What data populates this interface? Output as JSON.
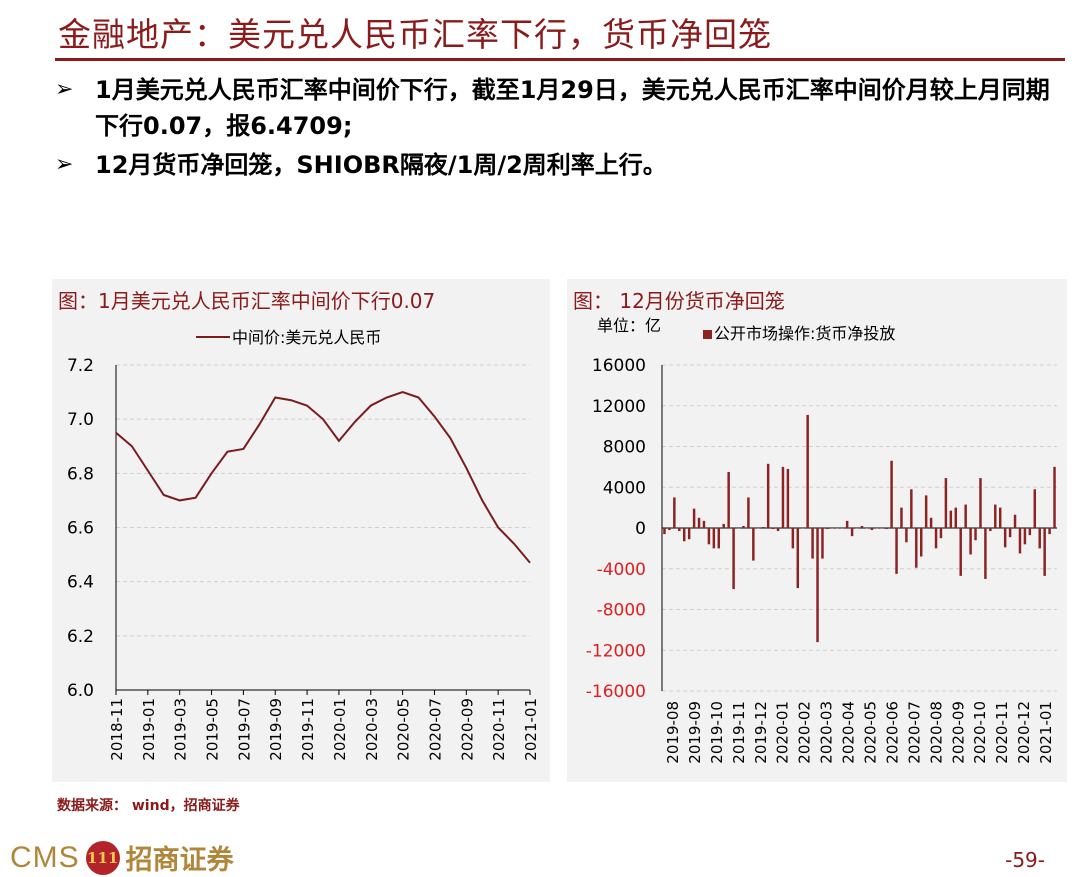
{
  "header": {
    "title": "金融地产：美元兑人民币汇率下行，货币净回笼"
  },
  "bullets": [
    "1月美元兑人民币汇率中间价下行，截至1月29日，美元兑人民币汇率中间价月较上月同期下行0.07，报6.4709;",
    "12月货币净回笼，SHIOBR隔夜/1周/2周利率上行。"
  ],
  "bullet_marker": "➢",
  "colors": {
    "accent": "#8b1a1a",
    "line": "#7a1c1c",
    "bar": "#8b2323",
    "negative_label": "#e02020"
  },
  "chart_data": [
    {
      "type": "line",
      "title": "图：1月美元兑人民币汇率中间价下行0.07",
      "series": [
        {
          "name": "中间价:美元兑人民币",
          "x": [
            "2018-11",
            "2018-12",
            "2019-01",
            "2019-02",
            "2019-03",
            "2019-04",
            "2019-05",
            "2019-06",
            "2019-07",
            "2019-08",
            "2019-09",
            "2019-10",
            "2019-11",
            "2019-12",
            "2020-01",
            "2020-02",
            "2020-03",
            "2020-04",
            "2020-05",
            "2020-06",
            "2020-07",
            "2020-08",
            "2020-09",
            "2020-10",
            "2020-11",
            "2020-12",
            "2021-01"
          ],
          "values": [
            6.95,
            6.9,
            6.81,
            6.72,
            6.7,
            6.71,
            6.8,
            6.88,
            6.89,
            6.98,
            7.08,
            7.07,
            7.05,
            7.0,
            6.92,
            6.99,
            7.05,
            7.08,
            7.1,
            7.08,
            7.01,
            6.93,
            6.82,
            6.7,
            6.6,
            6.54,
            6.47
          ]
        }
      ],
      "xticks": [
        "2018-11",
        "2019-01",
        "2019-03",
        "2019-05",
        "2019-07",
        "2019-09",
        "2019-11",
        "2020-01",
        "2020-03",
        "2020-05",
        "2020-07",
        "2020-09",
        "2020-11",
        "2021-01"
      ],
      "yticks": [
        "6.0",
        "6.2",
        "6.4",
        "6.6",
        "6.8",
        "7.0",
        "7.2"
      ],
      "ylim": [
        6.0,
        7.2
      ],
      "legend": "top-center",
      "grid": true
    },
    {
      "type": "bar",
      "title": "图： 12月份货币净回笼",
      "unit_label": "单位：亿",
      "series": [
        {
          "name": "公开市场操作:货币净投放",
          "values": [
            -600,
            -200,
            3000,
            -300,
            -1300,
            -1100,
            1900,
            1000,
            700,
            -1600,
            -2000,
            -2000,
            400,
            5500,
            -6000,
            0,
            200,
            3000,
            -3200,
            0,
            100,
            6300,
            -100,
            -300,
            6000,
            5800,
            -2000,
            -5900,
            0,
            11100,
            -3000,
            -11200,
            -3000,
            -100,
            0,
            0,
            0,
            700,
            -800,
            0,
            200,
            0,
            -200,
            0,
            0,
            -100,
            6600,
            -4500,
            2000,
            -1400,
            3800,
            -3900,
            -2800,
            3200,
            1000,
            -2000,
            -1000,
            4900,
            1700,
            2000,
            -4700,
            2300,
            -2600,
            -1200,
            4900,
            -5000,
            -300,
            2300,
            2000,
            -1900,
            -900,
            1300,
            -2500,
            -1600,
            -700,
            3800,
            -2000,
            -4700,
            -600,
            6000
          ]
        }
      ],
      "xticks": [
        "2019-08",
        "2019-09",
        "2019-10",
        "2019-11",
        "2019-12",
        "2020-01",
        "2020-02",
        "2020-03",
        "2020-04",
        "2020-05",
        "2020-06",
        "2020-07",
        "2020-08",
        "2020-09",
        "2020-10",
        "2020-11",
        "2020-12",
        "2021-01"
      ],
      "yticks": [
        "16000",
        "12000",
        "8000",
        "4000",
        "0",
        "-4000",
        "-8000",
        "-12000",
        "-16000"
      ],
      "ylim": [
        -16000,
        16000
      ],
      "legend": "top-center",
      "grid": true
    }
  ],
  "footer": {
    "source": "数据来源： wind，招商证券",
    "logo_text": "CMS",
    "logo_badge": "111",
    "logo_cn": "招商证券",
    "page": "-59-"
  }
}
